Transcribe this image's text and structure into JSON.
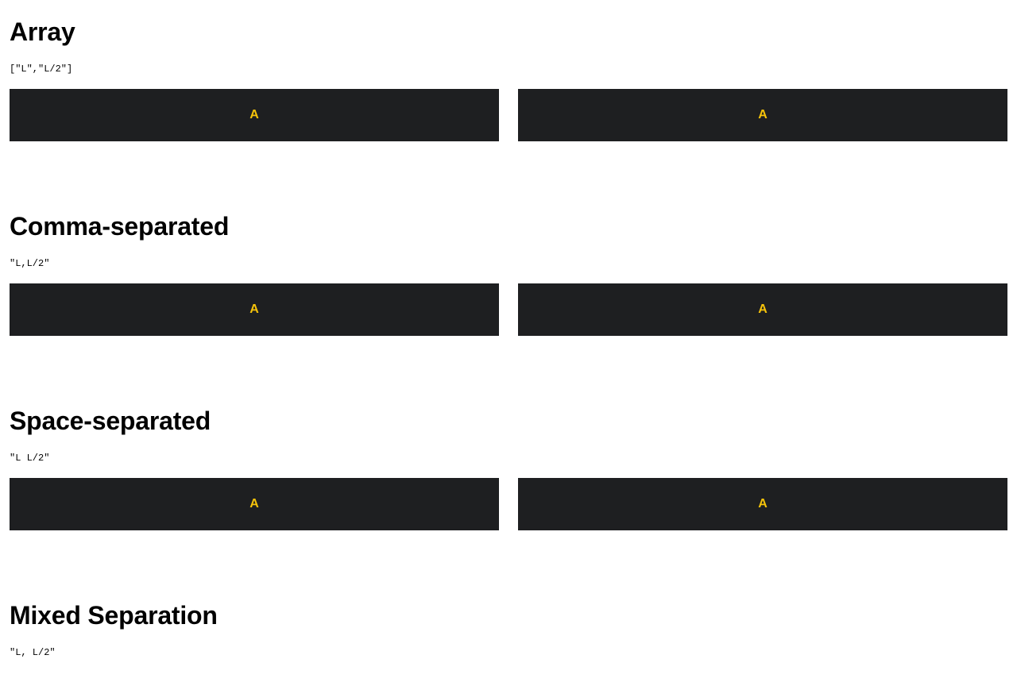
{
  "theme": {
    "box_background": "#1e1f21",
    "box_text_color": "#f6c30a"
  },
  "sections": [
    {
      "title": "Array",
      "value": "[\"L\",\"L/2\"]",
      "boxes": [
        {
          "label": "A"
        },
        {
          "label": "A"
        }
      ]
    },
    {
      "title": "Comma-separated",
      "value": "\"L,L/2\"",
      "boxes": [
        {
          "label": "A"
        },
        {
          "label": "A"
        }
      ]
    },
    {
      "title": "Space-separated",
      "value": "\"L L/2\"",
      "boxes": [
        {
          "label": "A"
        },
        {
          "label": "A"
        }
      ]
    },
    {
      "title": "Mixed Separation",
      "value": "\"L, L/2\"",
      "boxes": []
    }
  ]
}
